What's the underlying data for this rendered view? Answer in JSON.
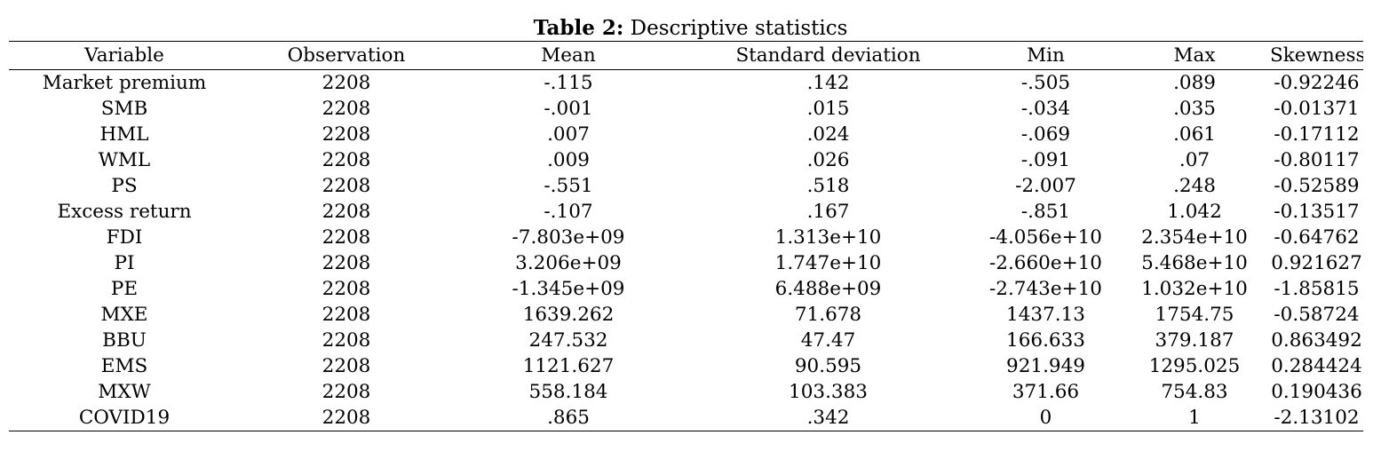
{
  "caption": {
    "label": "Table 2:",
    "text": "Descriptive statistics"
  },
  "table": {
    "headers": [
      "Variable",
      "Observation",
      "Mean",
      "Standard deviation",
      "Min",
      "Max",
      "Skewness"
    ],
    "rows": [
      [
        "Market premium",
        "2208",
        "-.115",
        ".142",
        "-.505",
        ".089",
        "-0.92246"
      ],
      [
        "SMB",
        "2208",
        "-.001",
        ".015",
        "-.034",
        ".035",
        "-0.01371"
      ],
      [
        "HML",
        "2208",
        ".007",
        ".024",
        "-.069",
        ".061",
        "-0.17112"
      ],
      [
        "WML",
        "2208",
        ".009",
        ".026",
        "-.091",
        ".07",
        "-0.80117"
      ],
      [
        "PS",
        "2208",
        "-.551",
        ".518",
        "-2.007",
        ".248",
        "-0.52589"
      ],
      [
        "Excess return",
        "2208",
        "-.107",
        ".167",
        "-.851",
        "1.042",
        "-0.13517"
      ],
      [
        "FDI",
        "2208",
        "-7.803e+09",
        "1.313e+10",
        "-4.056e+10",
        "2.354e+10",
        "-0.64762"
      ],
      [
        "PI",
        "2208",
        "3.206e+09",
        "1.747e+10",
        "-2.660e+10",
        "5.468e+10",
        "0.921627"
      ],
      [
        "PE",
        "2208",
        "-1.345e+09",
        "6.488e+09",
        "-2.743e+10",
        "1.032e+10",
        "-1.85815"
      ],
      [
        "MXE",
        "2208",
        "1639.262",
        "71.678",
        "1437.13",
        "1754.75",
        "-0.58724"
      ],
      [
        "BBU",
        "2208",
        "247.532",
        "47.47",
        "166.633",
        "379.187",
        "0.863492"
      ],
      [
        "EMS",
        "2208",
        "1121.627",
        "90.595",
        "921.949",
        "1295.025",
        "0.284424"
      ],
      [
        "MXW",
        "2208",
        "558.184",
        "103.383",
        "371.66",
        "754.83",
        "0.190436"
      ],
      [
        "COVID19",
        "2208",
        ".865",
        ".342",
        "0",
        "1",
        "-2.13102"
      ]
    ]
  }
}
